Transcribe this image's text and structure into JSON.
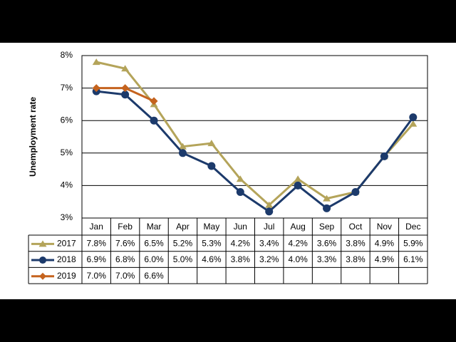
{
  "chart_data": {
    "type": "line",
    "y_label": "Unemployment rate",
    "categories": [
      "Jan",
      "Feb",
      "Mar",
      "Apr",
      "May",
      "Jun",
      "Jul",
      "Aug",
      "Sep",
      "Oct",
      "Nov",
      "Dec"
    ],
    "series": [
      {
        "name": "2017",
        "color": "#b4a45a",
        "marker": "triangle",
        "values": [
          7.8,
          7.6,
          6.5,
          5.2,
          5.3,
          4.2,
          3.4,
          4.2,
          3.6,
          3.8,
          4.9,
          5.9
        ],
        "value_labels": [
          "7.8%",
          "7.6%",
          "6.5%",
          "5.2%",
          "5.3%",
          "4.2%",
          "3.4%",
          "4.2%",
          "3.6%",
          "3.8%",
          "4.9%",
          "5.9%"
        ]
      },
      {
        "name": "2018",
        "color": "#1c3a6b",
        "marker": "circle",
        "values": [
          6.9,
          6.8,
          6.0,
          5.0,
          4.6,
          3.8,
          3.2,
          4.0,
          3.3,
          3.8,
          4.9,
          6.1
        ],
        "value_labels": [
          "6.9%",
          "6.8%",
          "6.0%",
          "5.0%",
          "4.6%",
          "3.8%",
          "3.2%",
          "4.0%",
          "3.3%",
          "3.8%",
          "4.9%",
          "6.1%"
        ]
      },
      {
        "name": "2019",
        "color": "#c5631e",
        "marker": "diamond",
        "values": [
          7.0,
          7.0,
          6.6,
          null,
          null,
          null,
          null,
          null,
          null,
          null,
          null,
          null
        ],
        "value_labels": [
          "7.0%",
          "7.0%",
          "6.6%",
          null,
          null,
          null,
          null,
          null,
          null,
          null,
          null,
          null
        ]
      }
    ],
    "ylim": [
      3,
      8
    ],
    "yticks": [
      {
        "value": 3,
        "label": "3%"
      },
      {
        "value": 4,
        "label": "4%"
      },
      {
        "value": 5,
        "label": "5%"
      },
      {
        "value": 6,
        "label": "6%"
      },
      {
        "value": 7,
        "label": "7%"
      },
      {
        "value": 8,
        "label": "8%"
      }
    ],
    "grid": true
  }
}
